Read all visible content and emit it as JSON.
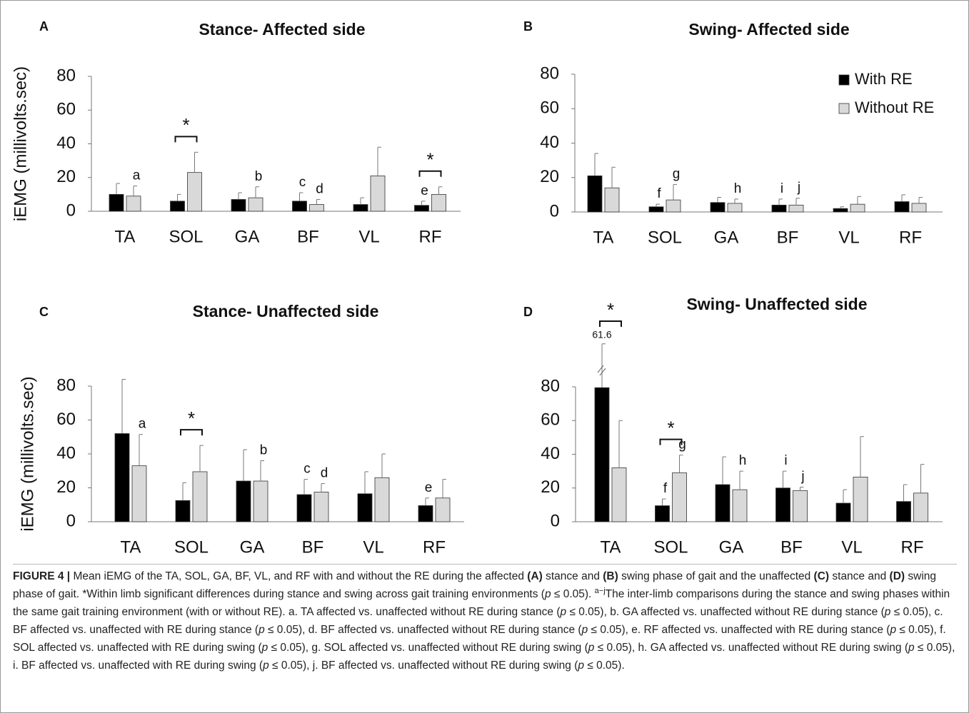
{
  "chart_data": [
    {
      "type": "bar",
      "panel": "A",
      "title": "Stance- Affected side",
      "ylabel": "iEMG (millivolts.sec)",
      "categories": [
        "TA",
        "SOL",
        "GA",
        "BF",
        "VL",
        "RF"
      ],
      "ylim": [
        0,
        80
      ],
      "yticks": [
        0,
        20,
        40,
        60,
        80
      ],
      "grid": false,
      "series": [
        {
          "name": "With RE",
          "color": "#000000",
          "values": [
            10,
            6,
            7,
            6,
            4,
            3.5
          ],
          "errors": [
            6.5,
            4,
            4,
            5,
            4,
            2.5
          ],
          "letters": [
            null,
            null,
            null,
            "c",
            null,
            "e"
          ]
        },
        {
          "name": "Without RE",
          "color": "#d9d9d9",
          "values": [
            9,
            23,
            8,
            4,
            21,
            10
          ],
          "errors": [
            6,
            12,
            6.5,
            3,
            17,
            4.5
          ],
          "letters": [
            "a",
            null,
            "b",
            "d",
            null,
            null
          ]
        }
      ],
      "significance": [
        null,
        "*",
        null,
        null,
        null,
        "*"
      ]
    },
    {
      "type": "bar",
      "panel": "B",
      "title": "Swing- Affected side",
      "categories": [
        "TA",
        "SOL",
        "GA",
        "BF",
        "VL",
        "RF"
      ],
      "ylim": [
        0,
        80
      ],
      "yticks": [
        0,
        20,
        40,
        60,
        80
      ],
      "grid": false,
      "legend": "top-right",
      "series": [
        {
          "name": "With RE",
          "color": "#000000",
          "values": [
            21,
            3,
            5.5,
            4,
            2,
            6
          ],
          "errors": [
            13,
            1.5,
            3,
            3.5,
            1,
            4
          ],
          "letters": [
            null,
            "f",
            null,
            "i",
            null,
            null
          ]
        },
        {
          "name": "Without RE",
          "color": "#d9d9d9",
          "values": [
            14,
            7,
            5,
            4,
            4.5,
            5
          ],
          "errors": [
            12,
            9,
            2.5,
            4,
            4.5,
            3.5
          ],
          "letters": [
            null,
            "g",
            "h",
            "j",
            null,
            null
          ]
        }
      ]
    },
    {
      "type": "bar",
      "panel": "C",
      "title": "Stance- Unaffected side",
      "ylabel": "iEMG (millivolts.sec)",
      "categories": [
        "TA",
        "SOL",
        "GA",
        "BF",
        "VL",
        "RF"
      ],
      "ylim": [
        0,
        80
      ],
      "yticks": [
        0,
        20,
        40,
        60,
        80
      ],
      "grid": false,
      "series": [
        {
          "name": "With RE",
          "color": "#000000",
          "values": [
            52,
            12.5,
            24,
            16,
            16.5,
            9.5
          ],
          "errors": [
            32,
            10.5,
            18.5,
            9,
            13,
            4.5
          ],
          "letters": [
            null,
            null,
            null,
            "c",
            null,
            "e"
          ]
        },
        {
          "name": "Without RE",
          "color": "#d9d9d9",
          "values": [
            33,
            29.5,
            24,
            17.5,
            26,
            14
          ],
          "errors": [
            18.5,
            15.5,
            12,
            5,
            14,
            11
          ],
          "letters": [
            "a",
            null,
            "b",
            "d",
            null,
            null
          ]
        }
      ],
      "significance": [
        null,
        "*",
        null,
        null,
        null,
        null
      ]
    },
    {
      "type": "bar",
      "panel": "D",
      "title": "Swing- Unaffected side",
      "categories": [
        "TA",
        "SOL",
        "GA",
        "BF",
        "VL",
        "RF"
      ],
      "ylim": [
        0,
        80
      ],
      "yticks": [
        0,
        20,
        40,
        60,
        80
      ],
      "grid": false,
      "series": [
        {
          "name": "With RE",
          "color": "#000000",
          "values": [
            79.5,
            9.5,
            22,
            20,
            11,
            12
          ],
          "errors": [
            26,
            4,
            16.5,
            10,
            8,
            10
          ],
          "letters": [
            null,
            "f",
            null,
            "i",
            null,
            null
          ]
        },
        {
          "name": "Without RE",
          "color": "#d9d9d9",
          "values": [
            32,
            29,
            19,
            18.5,
            26.5,
            17
          ],
          "errors": [
            28,
            10.5,
            11,
            2,
            24,
            17
          ],
          "letters": [
            null,
            "g",
            "h",
            "j",
            null,
            null
          ]
        }
      ],
      "significance": [
        "*",
        "*",
        null,
        null,
        null,
        null
      ],
      "break_label": "61.6"
    }
  ],
  "caption": [
    {
      "text": "FIGURE 4 |",
      "style": "bold"
    },
    {
      "text": " Mean iEMG of the TA, SOL, GA, BF, VL, and RF with and without the RE during the affected "
    },
    {
      "text": "(A)",
      "style": "bold"
    },
    {
      "text": " stance and "
    },
    {
      "text": "(B)",
      "style": "bold"
    },
    {
      "text": " swing phase of gait and the unaffected "
    },
    {
      "text": "(C)",
      "style": "bold"
    },
    {
      "text": " stance and "
    },
    {
      "text": "(D)",
      "style": "bold"
    },
    {
      "text": " swing phase of gait. *Within limb significant differences during stance and swing across gait training environments ("
    },
    {
      "text": "p",
      "style": "italic"
    },
    {
      "text": " ≤ 0.05). "
    },
    {
      "text": "a−j",
      "style": "sup"
    },
    {
      "text": "The inter-limb comparisons during the stance and swing phases within the same gait training environment (with or without RE). a. TA affected vs. unaffected without RE during stance ("
    },
    {
      "text": "p",
      "style": "italic"
    },
    {
      "text": " ≤ 0.05), b. GA affected vs. unaffected without RE during stance ("
    },
    {
      "text": "p",
      "style": "italic"
    },
    {
      "text": " ≤ 0.05), c. BF affected vs. unaffected with RE during stance ("
    },
    {
      "text": "p",
      "style": "italic"
    },
    {
      "text": " ≤ 0.05), d. BF affected vs. unaffected without RE during stance ("
    },
    {
      "text": "p",
      "style": "italic"
    },
    {
      "text": " ≤ 0.05), e. RF affected vs. unaffected with RE during stance ("
    },
    {
      "text": "p",
      "style": "italic"
    },
    {
      "text": " ≤ 0.05), f. SOL affected vs. unaffected with RE during swing ("
    },
    {
      "text": "p",
      "style": "italic"
    },
    {
      "text": " ≤ 0.05), g. SOL affected vs. unaffected without RE during swing ("
    },
    {
      "text": "p",
      "style": "italic"
    },
    {
      "text": " ≤ 0.05), h. GA affected vs. unaffected without RE during swing ("
    },
    {
      "text": "p",
      "style": "italic"
    },
    {
      "text": " ≤ 0.05), i. BF affected vs. unaffected with RE during swing ("
    },
    {
      "text": "p",
      "style": "italic"
    },
    {
      "text": " ≤ 0.05), j. BF affected vs. unaffected without RE during swing ("
    },
    {
      "text": "p",
      "style": "italic"
    },
    {
      "text": " ≤ 0.05)."
    }
  ]
}
